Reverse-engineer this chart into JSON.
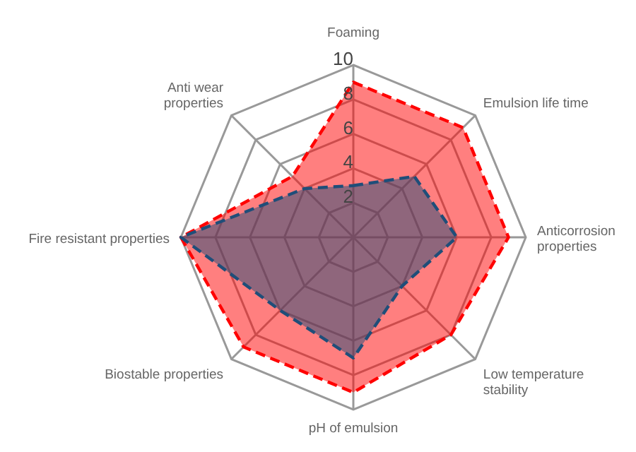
{
  "chart_data": {
    "type": "radar",
    "categories": [
      "Foaming",
      "Emulsion life time",
      "Anticorrosion properties",
      "Low temperature stability",
      "pH of emulsion",
      "Biostable properties",
      "Fire resistant properties",
      "Anti wear properties"
    ],
    "series": [
      {
        "color": "#ff0000",
        "values": [
          9,
          9,
          9,
          8,
          9,
          9,
          10,
          5
        ]
      },
      {
        "color": "#1f4e79",
        "values": [
          3,
          5,
          6,
          4,
          7,
          6,
          10,
          4
        ]
      }
    ],
    "ylim": [
      0,
      10
    ],
    "yticks": [
      2,
      4,
      6,
      8,
      10
    ],
    "grid": true,
    "legend": false,
    "marker": "none",
    "line_style": "dashed"
  }
}
